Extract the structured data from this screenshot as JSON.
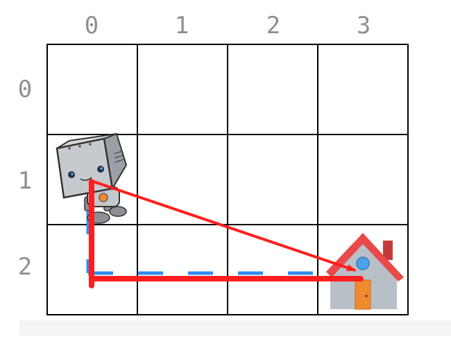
{
  "grid": {
    "rows": 3,
    "cols": 4,
    "col_labels": [
      "0",
      "1",
      "2",
      "3"
    ],
    "row_labels": [
      "0",
      "1",
      "2"
    ],
    "label_color": "#8f8f8f",
    "line_color": "#000000"
  },
  "robot": {
    "icon": "robot-icon",
    "cell": [
      1,
      0
    ]
  },
  "goal": {
    "icon": "house-icon",
    "cell": [
      2,
      3
    ]
  },
  "paths": {
    "manhattan_color": "#ff1e1e",
    "dashed_color": "#2f8ff0",
    "direct_color": "#ff1e1e"
  }
}
